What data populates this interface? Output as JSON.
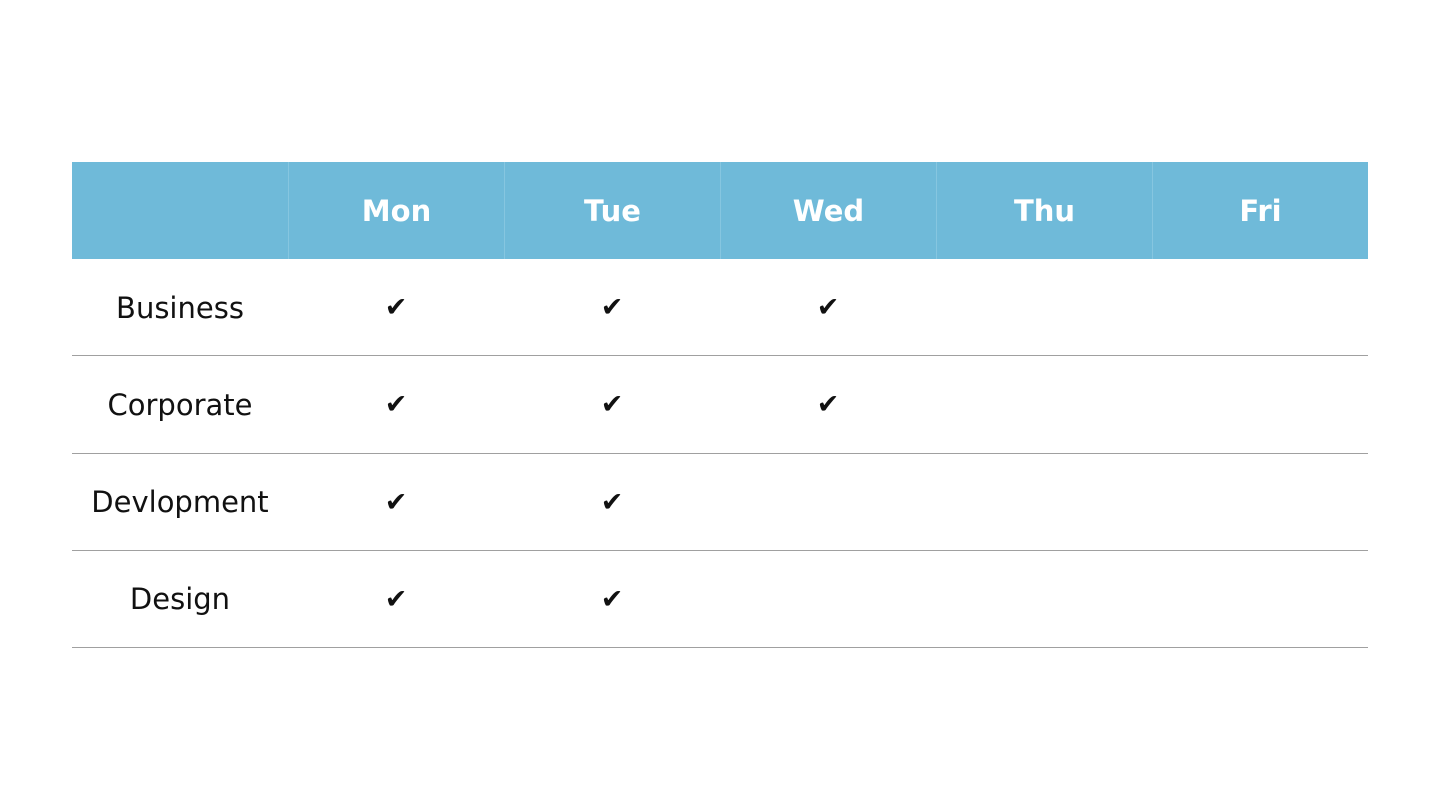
{
  "table": {
    "header": [
      "Mon",
      "Tue",
      "Wed",
      "Thu",
      "Fri"
    ],
    "rows": [
      {
        "label": "Business",
        "cells": [
          "✔",
          "✔",
          "✔",
          null,
          null
        ]
      },
      {
        "label": "Corporate",
        "cells": [
          "✔",
          "✔",
          "✔",
          null,
          null
        ]
      },
      {
        "label": "Devlopment",
        "cells": [
          "✔",
          "✔",
          null,
          null,
          null
        ]
      },
      {
        "label": "Design",
        "cells": [
          "✔",
          "✔",
          null,
          null,
          null
        ]
      }
    ]
  }
}
